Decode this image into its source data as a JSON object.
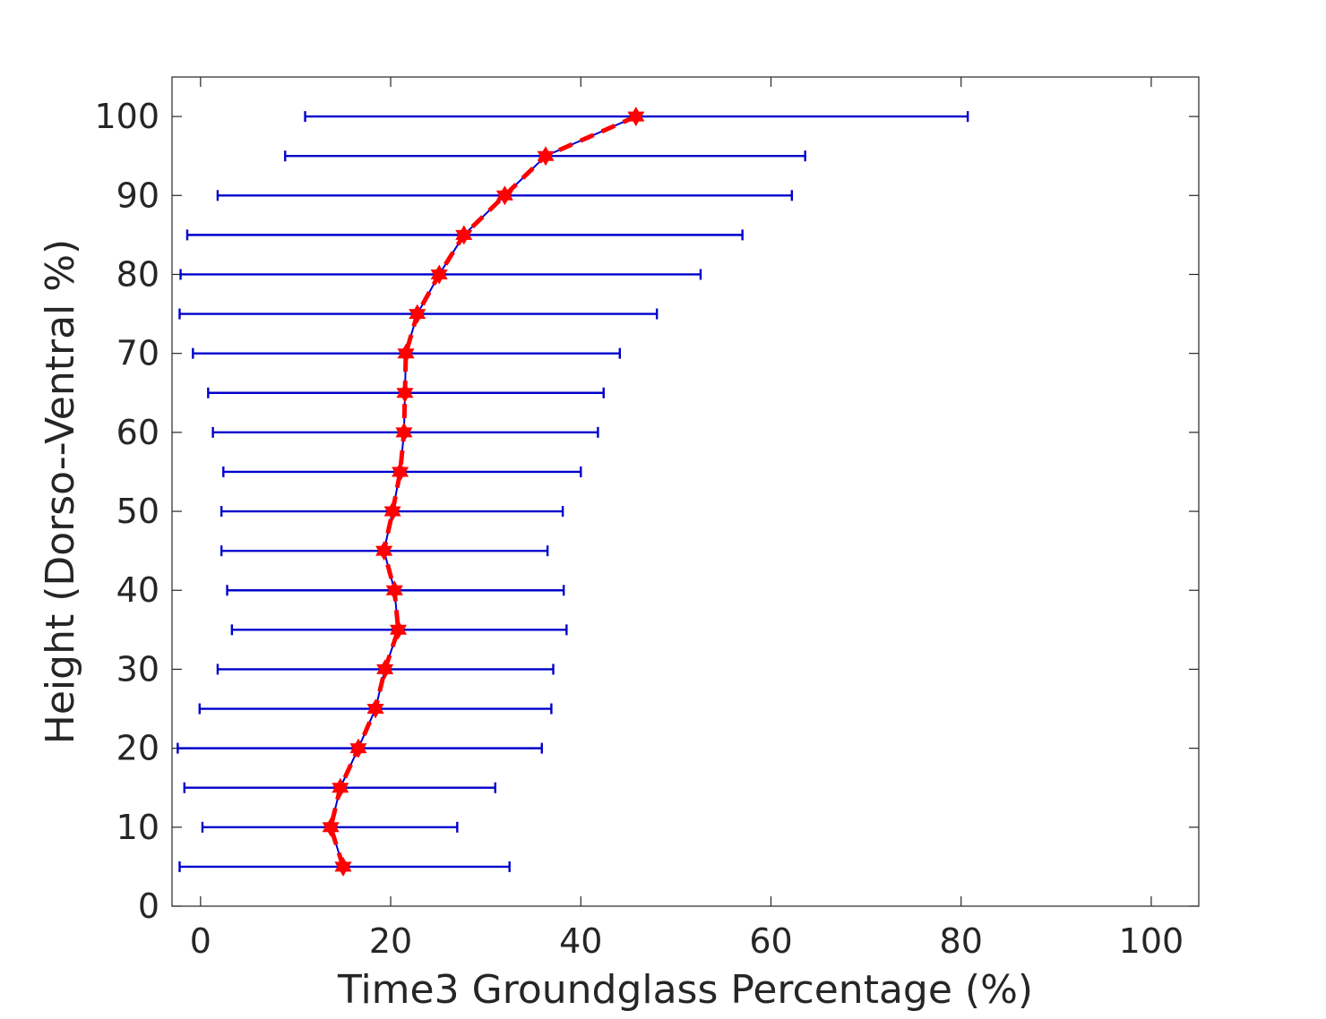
{
  "chart_data": {
    "type": "scatter",
    "title": "",
    "xlabel": "Time3 Groundglass Percentage (%)",
    "ylabel": "Height (Dorso--Ventral %)",
    "xlim": [
      -3,
      105
    ],
    "ylim": [
      0,
      105
    ],
    "xticks": [
      0,
      20,
      40,
      60,
      80,
      100
    ],
    "yticks": [
      0,
      10,
      20,
      30,
      40,
      50,
      60,
      70,
      80,
      90,
      100
    ],
    "grid": false,
    "series": [
      {
        "type": "errorbar",
        "color": "#0000cc",
        "points": [
          {
            "y": 5,
            "x": 15.0,
            "lo": -2.2,
            "hi": 32.5
          },
          {
            "y": 10,
            "x": 13.7,
            "lo": 0.2,
            "hi": 27.0
          },
          {
            "y": 15,
            "x": 14.7,
            "lo": -1.7,
            "hi": 31.0
          },
          {
            "y": 20,
            "x": 16.6,
            "lo": -2.4,
            "hi": 35.9
          },
          {
            "y": 25,
            "x": 18.4,
            "lo": -0.1,
            "hi": 36.9
          },
          {
            "y": 30,
            "x": 19.4,
            "lo": 1.8,
            "hi": 37.1
          },
          {
            "y": 35,
            "x": 20.8,
            "lo": 3.3,
            "hi": 38.5
          },
          {
            "y": 40,
            "x": 20.4,
            "lo": 2.8,
            "hi": 38.2
          },
          {
            "y": 45,
            "x": 19.3,
            "lo": 2.2,
            "hi": 36.5
          },
          {
            "y": 50,
            "x": 20.2,
            "lo": 2.2,
            "hi": 38.1
          },
          {
            "y": 55,
            "x": 21.0,
            "lo": 2.4,
            "hi": 40.0
          },
          {
            "y": 60,
            "x": 21.4,
            "lo": 1.3,
            "hi": 41.8
          },
          {
            "y": 65,
            "x": 21.5,
            "lo": 0.8,
            "hi": 42.4
          },
          {
            "y": 70,
            "x": 21.6,
            "lo": -0.8,
            "hi": 44.1
          },
          {
            "y": 75,
            "x": 22.8,
            "lo": -2.2,
            "hi": 48.0
          },
          {
            "y": 80,
            "x": 25.1,
            "lo": -2.1,
            "hi": 52.6
          },
          {
            "y": 85,
            "x": 27.7,
            "lo": -1.4,
            "hi": 57.0
          },
          {
            "y": 90,
            "x": 32.0,
            "lo": 1.8,
            "hi": 62.2
          },
          {
            "y": 95,
            "x": 36.3,
            "lo": 8.9,
            "hi": 63.6
          },
          {
            "y": 100,
            "x": 45.8,
            "lo": 11.0,
            "hi": 80.7
          }
        ]
      },
      {
        "type": "line",
        "style": "dashed",
        "marker": "hexagram",
        "color": "#ff0000",
        "uses_points_of_series": 0
      }
    ]
  }
}
